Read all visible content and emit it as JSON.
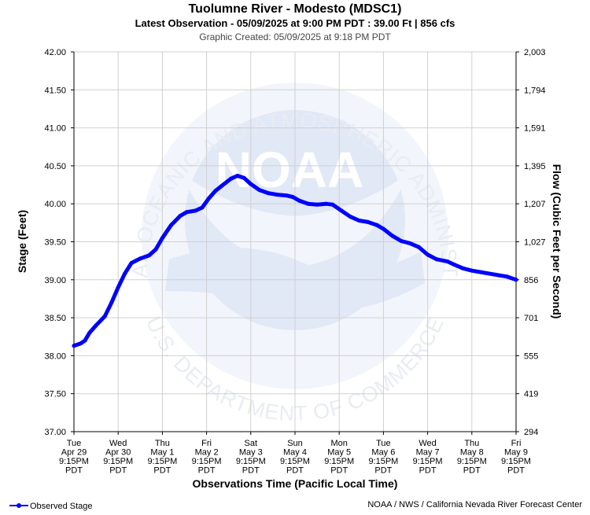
{
  "chart_data": {
    "type": "line",
    "title": "Tuolumne River - Modesto (MDSC1)",
    "subtitle": "Latest Observation - 05/09/2025 at 9:00 PM PDT : 39.00 Ft | 856 cfs",
    "created": "Graphic Created: 05/09/2025 at 9:18 PM PDT",
    "xlabel": "Observations Time (Pacific Local Time)",
    "ylabel": "Stage (Feet)",
    "y2label": "Flow (Cubic Feet per Second)",
    "ylim": [
      37.0,
      42.0
    ],
    "xlim": [
      0,
      10
    ],
    "y_ticks": [
      "42.00",
      "41.50",
      "41.00",
      "40.50",
      "40.00",
      "39.50",
      "39.00",
      "38.50",
      "38.00",
      "37.50",
      "37.00"
    ],
    "y2_ticks": [
      "2,003",
      "1,794",
      "1,591",
      "1,395",
      "1,207",
      "1,027",
      "856",
      "701",
      "555",
      "419",
      "294"
    ],
    "x_ticks": [
      {
        "day": "Tue",
        "date": "Apr 29",
        "time": "9:15PM",
        "tz": "PDT"
      },
      {
        "day": "Wed",
        "date": "Apr 30",
        "time": "9:15PM",
        "tz": "PDT"
      },
      {
        "day": "Thu",
        "date": "May 1",
        "time": "9:15PM",
        "tz": "PDT"
      },
      {
        "day": "Fri",
        "date": "May 2",
        "time": "9:15PM",
        "tz": "PDT"
      },
      {
        "day": "Sat",
        "date": "May 3",
        "time": "9:15PM",
        "tz": "PDT"
      },
      {
        "day": "Sun",
        "date": "May 4",
        "time": "9:15PM",
        "tz": "PDT"
      },
      {
        "day": "Mon",
        "date": "May 5",
        "time": "9:15PM",
        "tz": "PDT"
      },
      {
        "day": "Tue",
        "date": "May 6",
        "time": "9:15PM",
        "tz": "PDT"
      },
      {
        "day": "Wed",
        "date": "May 7",
        "time": "9:15PM",
        "tz": "PDT"
      },
      {
        "day": "Thu",
        "date": "May 8",
        "time": "9:15PM",
        "tz": "PDT"
      },
      {
        "day": "Fri",
        "date": "May 9",
        "time": "9:15PM",
        "tz": "PDT"
      }
    ],
    "series": [
      {
        "name": "Observed Stage",
        "color": "#0000ff",
        "points": [
          [
            0.0,
            38.13
          ],
          [
            0.15,
            38.16
          ],
          [
            0.25,
            38.2
          ],
          [
            0.35,
            38.3
          ],
          [
            0.5,
            38.4
          ],
          [
            0.7,
            38.52
          ],
          [
            0.85,
            38.7
          ],
          [
            1.0,
            38.9
          ],
          [
            1.15,
            39.08
          ],
          [
            1.3,
            39.22
          ],
          [
            1.5,
            39.28
          ],
          [
            1.7,
            39.32
          ],
          [
            1.85,
            39.4
          ],
          [
            2.0,
            39.55
          ],
          [
            2.2,
            39.72
          ],
          [
            2.4,
            39.84
          ],
          [
            2.55,
            39.89
          ],
          [
            2.75,
            39.91
          ],
          [
            2.9,
            39.95
          ],
          [
            3.05,
            40.07
          ],
          [
            3.2,
            40.17
          ],
          [
            3.35,
            40.24
          ],
          [
            3.55,
            40.33
          ],
          [
            3.7,
            40.37
          ],
          [
            3.85,
            40.34
          ],
          [
            4.0,
            40.26
          ],
          [
            4.2,
            40.18
          ],
          [
            4.4,
            40.14
          ],
          [
            4.6,
            40.12
          ],
          [
            4.8,
            40.11
          ],
          [
            4.95,
            40.09
          ],
          [
            5.1,
            40.04
          ],
          [
            5.3,
            40.0
          ],
          [
            5.5,
            39.99
          ],
          [
            5.7,
            40.0
          ],
          [
            5.85,
            39.99
          ],
          [
            6.05,
            39.91
          ],
          [
            6.25,
            39.83
          ],
          [
            6.45,
            39.78
          ],
          [
            6.65,
            39.76
          ],
          [
            6.85,
            39.72
          ],
          [
            7.0,
            39.67
          ],
          [
            7.2,
            39.58
          ],
          [
            7.4,
            39.51
          ],
          [
            7.6,
            39.48
          ],
          [
            7.8,
            39.43
          ],
          [
            8.0,
            39.33
          ],
          [
            8.2,
            39.27
          ],
          [
            8.45,
            39.24
          ],
          [
            8.6,
            39.2
          ],
          [
            8.8,
            39.15
          ],
          [
            9.0,
            39.12
          ],
          [
            9.2,
            39.1
          ],
          [
            9.4,
            39.08
          ],
          [
            9.6,
            39.06
          ],
          [
            9.8,
            39.04
          ],
          [
            10.0,
            39.0
          ]
        ]
      }
    ],
    "legend": "bottom-left",
    "grid": true,
    "footer": "NOAA / NWS / California Nevada River Forecast Center",
    "watermark": {
      "logo_text": "NOAA",
      "ring_top": "NATIONAL OCEANIC AND ATMOSPHERIC ADMINISTRATION",
      "ring_bottom": "U.S. DEPARTMENT OF COMMERCE"
    }
  }
}
